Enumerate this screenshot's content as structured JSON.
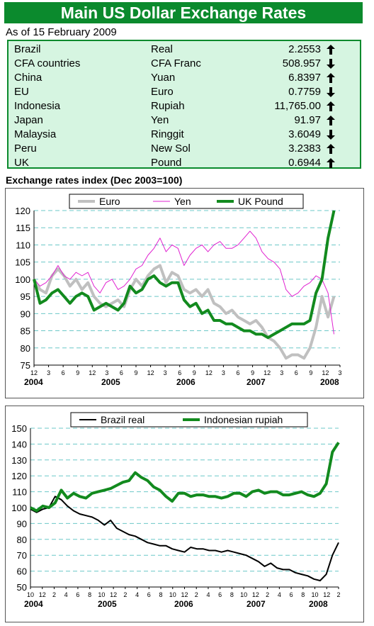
{
  "title": "Main US Dollar Exchange Rates",
  "as_of": "As of 15 February 2009",
  "colors": {
    "banner": "#0b8a2d",
    "table_bg": "#d6f5e1",
    "euro": "#c0c0c0",
    "yen": "#e020d0",
    "uk": "#128a1e",
    "brazil": "#000000",
    "rupiah": "#128a1e",
    "grid": "#6cc8c8"
  },
  "rates": [
    {
      "country": "Brazil",
      "currency": "Real",
      "value": "2.2553",
      "trend": "up"
    },
    {
      "country": "CFA countries",
      "currency": "CFA Franc",
      "value": "508.957",
      "trend": "down"
    },
    {
      "country": "China",
      "currency": "Yuan",
      "value": "6.8397",
      "trend": "up"
    },
    {
      "country": "EU",
      "currency": "Euro",
      "value": "0.7759",
      "trend": "down"
    },
    {
      "country": "Indonesia",
      "currency": "Rupiah",
      "value": "11,765.00",
      "trend": "up"
    },
    {
      "country": "Japan",
      "currency": "Yen",
      "value": "91.97",
      "trend": "up"
    },
    {
      "country": "Malaysia",
      "currency": "Ringgit",
      "value": "3.6049",
      "trend": "down"
    },
    {
      "country": "Peru",
      "currency": "New Sol",
      "value": "3.2383",
      "trend": "up"
    },
    {
      "country": "UK",
      "currency": "Pound",
      "value": "0.6944",
      "trend": "up"
    }
  ],
  "section_title": "Exchange rates index (Dec 2003=100)",
  "chart_data": [
    {
      "type": "line",
      "ylim": [
        75,
        120
      ],
      "yticks": [
        75,
        80,
        85,
        90,
        95,
        100,
        105,
        110,
        115,
        120
      ],
      "xlim": [
        0,
        51
      ],
      "month_labels": [
        "12",
        "3",
        "6",
        "9",
        "12",
        "3",
        "6",
        "9",
        "12",
        "3",
        "6",
        "9",
        "12",
        "3",
        "6",
        "9",
        "12",
        "3",
        "6",
        "9",
        "12",
        "3"
      ],
      "year_labels": [
        "2004",
        "2005",
        "2006",
        "2007",
        "2008"
      ],
      "legend_position": "top",
      "grid": true,
      "series": [
        {
          "name": "Euro",
          "color": "#c0c0c0",
          "width": 4,
          "x": [
            0,
            1,
            2,
            3,
            4,
            5,
            6,
            7,
            8,
            9,
            10,
            11,
            12,
            13,
            14,
            15,
            16,
            17,
            18,
            19,
            20,
            21,
            22,
            23,
            24,
            25,
            26,
            27,
            28,
            29,
            30,
            31,
            32,
            33,
            34,
            35,
            36,
            37,
            38,
            39,
            40,
            41,
            42,
            43,
            44,
            45,
            46,
            47,
            48,
            49,
            50
          ],
          "y": [
            100,
            97,
            96,
            101,
            103,
            101,
            98,
            100,
            97,
            99,
            95,
            93,
            92,
            93,
            94,
            92,
            97,
            100,
            98,
            101,
            103,
            104,
            99,
            102,
            101,
            97,
            96,
            97,
            95,
            97,
            93,
            92,
            90,
            91,
            89,
            88,
            87,
            88,
            86,
            83,
            82,
            80,
            77,
            78,
            78,
            77,
            80,
            86,
            95,
            89,
            95
          ]
        },
        {
          "name": "Yen",
          "color": "#e020d0",
          "width": 1,
          "x": [
            0,
            1,
            2,
            3,
            4,
            5,
            6,
            7,
            8,
            9,
            10,
            11,
            12,
            13,
            14,
            15,
            16,
            17,
            18,
            19,
            20,
            21,
            22,
            23,
            24,
            25,
            26,
            27,
            28,
            29,
            30,
            31,
            32,
            33,
            34,
            35,
            36,
            37,
            38,
            39,
            40,
            41,
            42,
            43,
            44,
            45,
            46,
            47,
            48,
            49,
            50
          ],
          "y": [
            100,
            98,
            99,
            101,
            104,
            101,
            100,
            102,
            101,
            102,
            98,
            96,
            99,
            100,
            97,
            98,
            100,
            103,
            104,
            107,
            109,
            112,
            108,
            110,
            109,
            104,
            107,
            109,
            110,
            108,
            110,
            111,
            109,
            109,
            110,
            112,
            114,
            112,
            108,
            106,
            105,
            103,
            97,
            95,
            96,
            98,
            99,
            101,
            100,
            96,
            84
          ]
        },
        {
          "name": "UK Pound",
          "color": "#128a1e",
          "width": 4,
          "x": [
            0,
            1,
            2,
            3,
            4,
            5,
            6,
            7,
            8,
            9,
            10,
            11,
            12,
            13,
            14,
            15,
            16,
            17,
            18,
            19,
            20,
            21,
            22,
            23,
            24,
            25,
            26,
            27,
            28,
            29,
            30,
            31,
            32,
            33,
            34,
            35,
            36,
            37,
            38,
            39,
            40,
            41,
            42,
            43,
            44,
            45,
            46,
            47,
            48,
            49,
            50
          ],
          "y": [
            100,
            93,
            94,
            96,
            97,
            95,
            93,
            95,
            96,
            95,
            91,
            92,
            93,
            92,
            91,
            93,
            98,
            96,
            97,
            100,
            101,
            99,
            98,
            99,
            99,
            94,
            92,
            93,
            90,
            91,
            88,
            88,
            87,
            87,
            86,
            85,
            85,
            84,
            84,
            83,
            84,
            85,
            86,
            87,
            87,
            87,
            88,
            96,
            100,
            112,
            120
          ]
        }
      ]
    },
    {
      "type": "line",
      "ylim": [
        50,
        150
      ],
      "yticks": [
        50,
        60,
        70,
        80,
        90,
        100,
        110,
        120,
        130,
        140,
        150
      ],
      "xlim": [
        0,
        50
      ],
      "month_labels": [
        "10",
        "12",
        "2",
        "4",
        "6",
        "8",
        "10",
        "12",
        "2",
        "4",
        "6",
        "8",
        "10",
        "12",
        "2",
        "4",
        "6",
        "8",
        "10",
        "12",
        "2",
        "4",
        "6",
        "8",
        "10",
        "12",
        "2"
      ],
      "year_labels": [
        "2004",
        "2005",
        "2006",
        "2007",
        "2008"
      ],
      "legend_position": "top",
      "grid": true,
      "series": [
        {
          "name": "Brazil real",
          "color": "#000000",
          "width": 2,
          "x": [
            0,
            1,
            2,
            3,
            4,
            5,
            6,
            7,
            8,
            9,
            10,
            11,
            12,
            13,
            14,
            15,
            16,
            17,
            18,
            19,
            20,
            21,
            22,
            23,
            24,
            25,
            26,
            27,
            28,
            29,
            30,
            31,
            32,
            33,
            34,
            35,
            36,
            37,
            38,
            39,
            40,
            41,
            42,
            43,
            44,
            45,
            46,
            47,
            48,
            49,
            50
          ],
          "y": [
            99,
            97,
            99,
            100,
            107,
            105,
            101,
            98,
            96,
            95,
            94,
            92,
            89,
            92,
            87,
            85,
            83,
            82,
            80,
            78,
            77,
            76,
            76,
            74,
            73,
            72,
            75,
            74,
            74,
            73,
            73,
            72,
            73,
            72,
            71,
            70,
            68,
            66,
            63,
            65,
            62,
            61,
            61,
            59,
            58,
            57,
            55,
            54,
            58,
            70,
            78
          ]
        },
        {
          "name": "Indonesian rupiah",
          "color": "#128a1e",
          "width": 4,
          "x": [
            0,
            1,
            2,
            3,
            4,
            5,
            6,
            7,
            8,
            9,
            10,
            11,
            12,
            13,
            14,
            15,
            16,
            17,
            18,
            19,
            20,
            21,
            22,
            23,
            24,
            25,
            26,
            27,
            28,
            29,
            30,
            31,
            32,
            33,
            34,
            35,
            36,
            37,
            38,
            39,
            40,
            41,
            42,
            43,
            44,
            45,
            46,
            47,
            48,
            49,
            50
          ],
          "y": [
            100,
            98,
            101,
            100,
            103,
            111,
            106,
            109,
            107,
            106,
            109,
            110,
            111,
            112,
            114,
            116,
            117,
            122,
            119,
            117,
            113,
            111,
            107,
            104,
            109,
            109,
            107,
            108,
            108,
            107,
            107,
            106,
            107,
            109,
            109,
            107,
            110,
            111,
            109,
            110,
            110,
            108,
            108,
            109,
            110,
            108,
            107,
            109,
            115,
            135,
            141
          ]
        }
      ]
    }
  ]
}
